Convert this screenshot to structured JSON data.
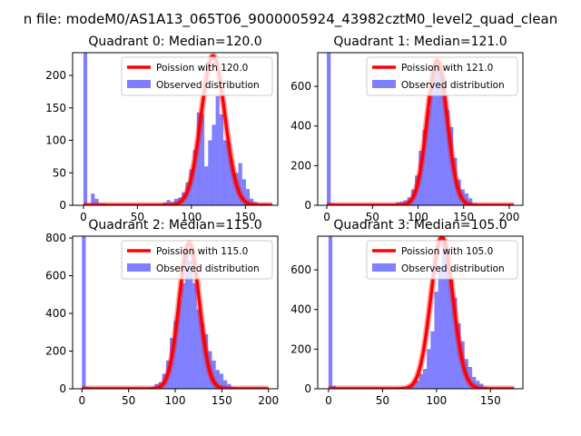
{
  "figure": {
    "suptitle": "n file: modeM0/AS1A13_065T06_9000005924_43982cztM0_level2_quad_clean"
  },
  "colors": {
    "hist": "#0000ff",
    "curve": "#ff0000",
    "axis": "#000000"
  },
  "chart_data": [
    {
      "type": "bar",
      "title": "Quadrant 0: Median=120.0",
      "median": 120.0,
      "xlim": [
        -10,
        180
      ],
      "ylim": [
        0,
        235
      ],
      "xticks": [
        0,
        50,
        100,
        150
      ],
      "yticks": [
        0,
        50,
        100,
        150,
        200
      ],
      "bin_width": 3.5,
      "hist_x": [
        0,
        3.5,
        7,
        10.5,
        14,
        17.5,
        21,
        73.5,
        77,
        80.5,
        84,
        87.5,
        91,
        94.5,
        98,
        101.5,
        105,
        108.5,
        112,
        115.5,
        119,
        122.5,
        126,
        129.5,
        133,
        136.5,
        140,
        143.5,
        147,
        150.5,
        154,
        157.5,
        161,
        164.5,
        168
      ],
      "hist_y": [
        235,
        0,
        18,
        10,
        3,
        3,
        2,
        4,
        8,
        5,
        10,
        12,
        20,
        35,
        55,
        85,
        143,
        140,
        60,
        100,
        124,
        168,
        140,
        100,
        97,
        60,
        50,
        65,
        40,
        25,
        10,
        5,
        3,
        3,
        3
      ],
      "poisson_peak": 230,
      "poisson_sigma": 10.95,
      "poisson_range": [
        0,
        175
      ],
      "legend": {
        "curve_label": "Poission with 120.0",
        "hist_label": "Observed distribution",
        "loc": "upper right"
      }
    },
    {
      "type": "bar",
      "title": "Quadrant 1: Median=121.0",
      "median": 121.0,
      "xlim": [
        -10,
        215
      ],
      "ylim": [
        0,
        770
      ],
      "xticks": [
        0,
        50,
        100,
        150,
        200
      ],
      "yticks": [
        0,
        200,
        400,
        600
      ],
      "bin_width": 4.2,
      "hist_x": [
        0,
        4.2,
        8.4,
        75.6,
        79.8,
        84,
        88.2,
        92.4,
        96.6,
        100.8,
        105,
        109.2,
        113.4,
        117.6,
        121.8,
        126,
        130.2,
        134.4,
        138.6,
        142.8,
        147,
        151.2,
        155.4,
        159.6,
        163.8
      ],
      "hist_y": [
        770,
        10,
        5,
        15,
        18,
        25,
        40,
        80,
        150,
        275,
        380,
        485,
        630,
        700,
        720,
        650,
        480,
        395,
        240,
        130,
        80,
        60,
        35,
        10,
        5
      ],
      "poisson_peak": 730,
      "poisson_sigma": 11.0,
      "poisson_range": [
        0,
        205
      ],
      "legend": {
        "curve_label": "Poission with 121.0",
        "hist_label": "Observed distribution",
        "loc": "upper right"
      }
    },
    {
      "type": "bar",
      "title": "Quadrant 2: Median=115.0",
      "median": 115.0,
      "xlim": [
        -10,
        210
      ],
      "ylim": [
        0,
        810
      ],
      "xticks": [
        0,
        50,
        100,
        150,
        200
      ],
      "yticks": [
        0,
        200,
        400,
        600,
        800
      ],
      "bin_width": 4.1,
      "hist_x": [
        0,
        4.1,
        73.8,
        77.9,
        82,
        86.1,
        90.2,
        94.3,
        98.4,
        102.5,
        106.6,
        110.7,
        114.8,
        118.9,
        123,
        127.1,
        131.2,
        135.3,
        139.4,
        143.5,
        147.6,
        151.7,
        155.8,
        159.9
      ],
      "hist_y": [
        810,
        10,
        10,
        25,
        35,
        80,
        150,
        270,
        360,
        470,
        560,
        740,
        680,
        560,
        420,
        350,
        290,
        200,
        150,
        100,
        80,
        45,
        25,
        10
      ],
      "poisson_peak": 775,
      "poisson_sigma": 10.72,
      "poisson_range": [
        0,
        200
      ],
      "legend": {
        "curve_label": "Poission with 115.0",
        "hist_label": "Observed distribution",
        "loc": "upper right"
      }
    },
    {
      "type": "bar",
      "title": "Quadrant 3: Median=105.0",
      "median": 105.0,
      "xlim": [
        -10,
        180
      ],
      "ylim": [
        0,
        770
      ],
      "xticks": [
        0,
        50,
        100,
        150
      ],
      "yticks": [
        0,
        200,
        400,
        600
      ],
      "bin_width": 3.5,
      "hist_x": [
        0,
        3.5,
        70,
        73.5,
        77,
        80.5,
        84,
        87.5,
        91,
        94.5,
        98,
        101.5,
        105,
        108.5,
        112,
        115.5,
        119,
        122.5,
        126,
        129.5,
        133,
        136.5,
        140,
        143.5,
        147,
        150.5
      ],
      "hist_y": [
        770,
        15,
        10,
        15,
        25,
        40,
        75,
        100,
        200,
        290,
        490,
        620,
        740,
        710,
        550,
        460,
        330,
        240,
        150,
        110,
        60,
        40,
        25,
        10,
        5,
        5
      ],
      "poisson_peak": 765,
      "poisson_sigma": 10.25,
      "poisson_range": [
        0,
        172
      ],
      "legend": {
        "curve_label": "Poission with 105.0",
        "hist_label": "Observed distribution",
        "loc": "upper right"
      }
    }
  ]
}
